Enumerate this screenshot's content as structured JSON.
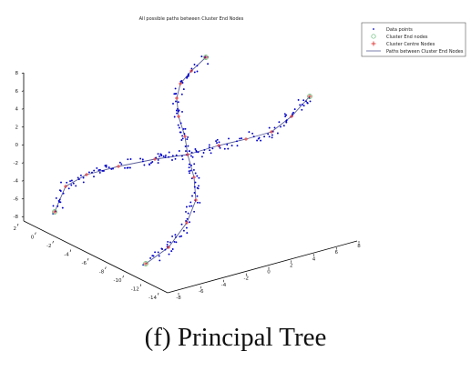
{
  "caption": "(f) Principal Tree",
  "colors": {
    "data": "#0000cc",
    "end": "#66bb77",
    "centre": "#dd2222",
    "path": "#5a5f9a"
  },
  "chart_data": {
    "type": "scatter",
    "title": "All possible paths between Cluster End Nodes",
    "legend": {
      "placement": "top-right",
      "entries": [
        "Data points",
        "Cluster End nodes",
        "Cluster Centre Nodes",
        "Paths between Cluster End Nodes"
      ]
    },
    "grid": false,
    "axes": {
      "z_ticks": [
        "8",
        "6",
        "4",
        "2",
        "0",
        "-2",
        "-4",
        "-6",
        "-8"
      ],
      "x_ticks": [
        "2",
        "0",
        "-2",
        "-4",
        "-6",
        "-8",
        "-10",
        "-12",
        "-14"
      ],
      "y_ticks": [
        "-8",
        "-6",
        "-4",
        "-2",
        "0",
        "2",
        "4",
        "6",
        "8"
      ]
    },
    "end_nodes": [
      {
        "branch": "top",
        "x": -11.0,
        "y": 3.2,
        "z": 6.6
      },
      {
        "branch": "right",
        "x": -3.0,
        "y": 4.8,
        "z": 4.5
      },
      {
        "branch": "left",
        "x": 0.8,
        "y": -6.5,
        "z": -6.6
      },
      {
        "branch": "bottom",
        "x": -10.0,
        "y": -2.0,
        "z": -7.0
      }
    ],
    "centre_node": {
      "x": -6.0,
      "y": 0.0,
      "z": 0.0
    }
  }
}
